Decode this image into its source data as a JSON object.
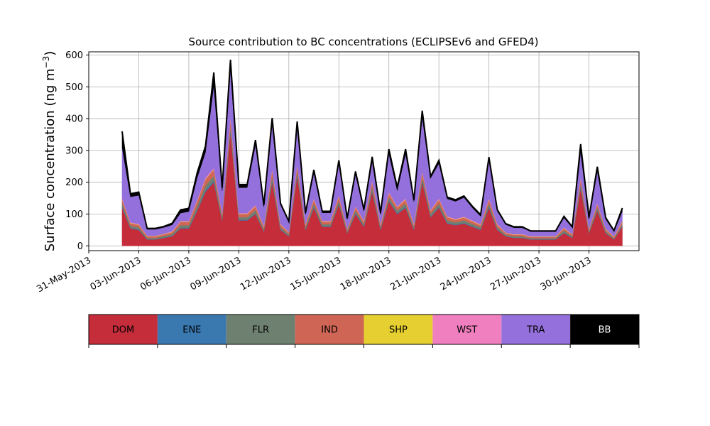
{
  "chart_data": {
    "type": "area",
    "stacked": true,
    "title": "Source contribution to BC concentrations (ECLIPSEv6 and GFED4)",
    "ylabel": "Surface concentration (ng m",
    "ylabel_exponent": "−3",
    "ylabel_close": ")",
    "xlabel": "",
    "ylim": [
      -15,
      610
    ],
    "xlim": [
      "2013-05-31",
      "2013-07-03"
    ],
    "yticks": [
      0,
      100,
      200,
      300,
      400,
      500,
      600
    ],
    "xticks": [
      "31-May-2013",
      "03-Jun-2013",
      "06-Jun-2013",
      "09-Jun-2013",
      "12-Jun-2013",
      "15-Jun-2013",
      "18-Jun-2013",
      "21-Jun-2013",
      "24-Jun-2013",
      "27-Jun-2013",
      "30-Jun-2013"
    ],
    "grid": true,
    "legend_position": "below",
    "x": [
      "2013-06-02 00:00",
      "2013-06-02 12:00",
      "2013-06-03 00:00",
      "2013-06-03 12:00",
      "2013-06-04 00:00",
      "2013-06-04 12:00",
      "2013-06-05 00:00",
      "2013-06-05 12:00",
      "2013-06-06 00:00",
      "2013-06-06 12:00",
      "2013-06-07 00:00",
      "2013-06-07 12:00",
      "2013-06-08 00:00",
      "2013-06-08 12:00",
      "2013-06-09 00:00",
      "2013-06-09 12:00",
      "2013-06-10 00:00",
      "2013-06-10 12:00",
      "2013-06-11 00:00",
      "2013-06-11 12:00",
      "2013-06-12 00:00",
      "2013-06-12 12:00",
      "2013-06-13 00:00",
      "2013-06-13 12:00",
      "2013-06-14 00:00",
      "2013-06-14 12:00",
      "2013-06-15 00:00",
      "2013-06-15 12:00",
      "2013-06-16 00:00",
      "2013-06-16 12:00",
      "2013-06-17 00:00",
      "2013-06-17 12:00",
      "2013-06-18 00:00",
      "2013-06-18 12:00",
      "2013-06-19 00:00",
      "2013-06-19 12:00",
      "2013-06-20 00:00",
      "2013-06-20 12:00",
      "2013-06-21 00:00",
      "2013-06-21 12:00",
      "2013-06-22 00:00",
      "2013-06-22 12:00",
      "2013-06-23 00:00",
      "2013-06-23 12:00",
      "2013-06-24 00:00",
      "2013-06-24 12:00",
      "2013-06-25 00:00",
      "2013-06-25 12:00",
      "2013-06-26 00:00",
      "2013-06-26 12:00",
      "2013-06-27 00:00",
      "2013-06-27 12:00",
      "2013-06-28 00:00",
      "2013-06-28 12:00",
      "2013-06-29 00:00",
      "2013-06-29 12:00",
      "2013-06-30 00:00",
      "2013-06-30 12:00",
      "2013-07-01 00:00",
      "2013-07-01 12:00",
      "2013-07-02 00:00"
    ],
    "series": [
      {
        "name": "DOM",
        "color": "#c62d3b",
        "values": [
          120,
          55,
          50,
          20,
          20,
          25,
          30,
          55,
          55,
          110,
          170,
          200,
          80,
          355,
          80,
          80,
          100,
          45,
          200,
          50,
          30,
          220,
          50,
          120,
          60,
          60,
          130,
          40,
          100,
          60,
          170,
          50,
          140,
          100,
          120,
          50,
          200,
          90,
          120,
          70,
          65,
          70,
          60,
          50,
          120,
          50,
          30,
          25,
          25,
          20,
          20,
          20,
          20,
          40,
          25,
          180,
          40,
          110,
          40,
          20,
          60
        ]
      },
      {
        "name": "ENE",
        "color": "#3a78b0",
        "values": [
          4,
          2,
          2,
          1,
          1,
          1,
          1,
          2,
          2,
          3,
          5,
          5,
          2,
          5,
          2,
          2,
          2,
          1,
          5,
          2,
          1,
          4,
          2,
          3,
          2,
          2,
          3,
          1,
          3,
          2,
          4,
          2,
          3,
          3,
          3,
          2,
          4,
          2,
          3,
          2,
          2,
          2,
          2,
          2,
          3,
          2,
          1,
          1,
          1,
          1,
          1,
          1,
          1,
          2,
          1,
          4,
          1,
          3,
          1,
          1,
          2
        ]
      },
      {
        "name": "FLR",
        "color": "#6e8070",
        "values": [
          10,
          6,
          6,
          4,
          4,
          5,
          6,
          8,
          8,
          12,
          14,
          15,
          8,
          15,
          8,
          8,
          10,
          6,
          14,
          6,
          5,
          12,
          6,
          10,
          6,
          6,
          10,
          5,
          8,
          6,
          12,
          6,
          10,
          8,
          10,
          6,
          12,
          8,
          10,
          8,
          7,
          8,
          7,
          6,
          10,
          6,
          4,
          4,
          4,
          3,
          3,
          3,
          3,
          6,
          4,
          12,
          5,
          8,
          5,
          3,
          6
        ]
      },
      {
        "name": "IND",
        "color": "#cf6655",
        "values": [
          12,
          8,
          8,
          5,
          5,
          5,
          6,
          10,
          10,
          15,
          20,
          20,
          10,
          25,
          10,
          10,
          12,
          8,
          18,
          8,
          6,
          16,
          8,
          12,
          8,
          8,
          12,
          6,
          10,
          8,
          15,
          8,
          12,
          10,
          12,
          8,
          15,
          10,
          12,
          10,
          8,
          9,
          8,
          7,
          12,
          8,
          5,
          5,
          5,
          4,
          4,
          4,
          4,
          7,
          5,
          15,
          6,
          10,
          6,
          4,
          8
        ]
      },
      {
        "name": "SHP",
        "color": "#e6cf30",
        "values": [
          1,
          1,
          1,
          1,
          1,
          1,
          1,
          1,
          1,
          1,
          1,
          1,
          1,
          1,
          1,
          1,
          1,
          1,
          1,
          1,
          1,
          1,
          1,
          1,
          1,
          1,
          1,
          1,
          1,
          1,
          1,
          1,
          1,
          1,
          1,
          1,
          1,
          1,
          1,
          1,
          1,
          1,
          1,
          1,
          1,
          1,
          1,
          1,
          1,
          1,
          1,
          1,
          1,
          1,
          1,
          1,
          1,
          1,
          1,
          1,
          1
        ]
      },
      {
        "name": "WST",
        "color": "#f07fbf",
        "values": [
          3,
          2,
          2,
          1,
          1,
          1,
          2,
          2,
          2,
          3,
          4,
          4,
          2,
          4,
          2,
          2,
          3,
          2,
          4,
          2,
          1,
          3,
          2,
          3,
          2,
          2,
          3,
          1,
          2,
          2,
          3,
          2,
          3,
          2,
          3,
          2,
          3,
          2,
          3,
          2,
          2,
          2,
          2,
          2,
          3,
          2,
          1,
          1,
          1,
          1,
          1,
          1,
          1,
          2,
          1,
          3,
          1,
          2,
          1,
          1,
          2
        ]
      },
      {
        "name": "TRA",
        "color": "#9370db",
        "values": [
          160,
          80,
          90,
          20,
          20,
          20,
          20,
          25,
          30,
          70,
          80,
          260,
          70,
          150,
          80,
          80,
          190,
          60,
          140,
          60,
          30,
          120,
          30,
          80,
          25,
          25,
          100,
          30,
          100,
          30,
          60,
          30,
          120,
          50,
          140,
          70,
          170,
          100,
          110,
          55,
          55,
          60,
          40,
          25,
          120,
          40,
          25,
          20,
          20,
          15,
          15,
          15,
          15,
          30,
          20,
          80,
          30,
          100,
          30,
          15,
          30
        ]
      },
      {
        "name": "BB",
        "color": "#000000",
        "values": [
          50,
          10,
          10,
          3,
          3,
          3,
          5,
          10,
          10,
          15,
          20,
          40,
          10,
          30,
          10,
          10,
          15,
          5,
          20,
          5,
          3,
          15,
          5,
          10,
          5,
          5,
          10,
          3,
          10,
          5,
          15,
          5,
          15,
          10,
          15,
          5,
          20,
          5,
          10,
          5,
          5,
          5,
          5,
          5,
          10,
          5,
          3,
          3,
          3,
          2,
          2,
          2,
          2,
          5,
          3,
          25,
          5,
          15,
          5,
          3,
          10
        ]
      }
    ]
  }
}
